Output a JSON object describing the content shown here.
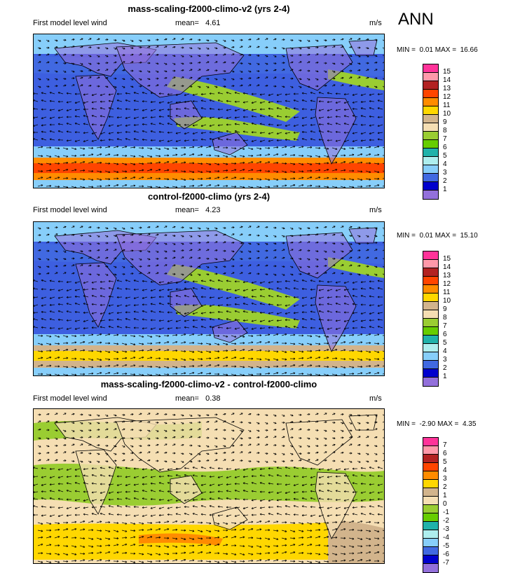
{
  "season": "ANN",
  "panels": [
    {
      "title": "mass-scaling-f2000-climo-v2 (yrs 2-4)",
      "variable": "First model level wind",
      "mean_label": "mean=",
      "mean": "4.61",
      "units": "m/s",
      "min_label": "MIN =",
      "min": "0.01",
      "max_label": "MAX =",
      "max": "16.66",
      "colorbar_labels": [
        "15",
        "14",
        "13",
        "12",
        "11",
        "10",
        "9",
        "8",
        "7",
        "6",
        "5",
        "4",
        "3",
        "2",
        "1"
      ],
      "colorbar_colors": [
        "#ff3399",
        "#ff99aa",
        "#b22222",
        "#ff4500",
        "#ff8c00",
        "#ffd700",
        "#d2b48c",
        "#f5deb3",
        "#9acd32",
        "#66cd00",
        "#20b2aa",
        "#aeeeee",
        "#87cefa",
        "#4169e1",
        "#0000cd",
        "#9370db"
      ]
    },
    {
      "title": "control-f2000-climo (yrs 2-4)",
      "variable": "First model level wind",
      "mean_label": "mean=",
      "mean": "4.23",
      "units": "m/s",
      "min_label": "MIN =",
      "min": "0.01",
      "max_label": "MAX =",
      "max": "15.10",
      "colorbar_labels": [
        "15",
        "14",
        "13",
        "12",
        "11",
        "10",
        "9",
        "8",
        "7",
        "6",
        "5",
        "4",
        "3",
        "2",
        "1"
      ],
      "colorbar_colors": [
        "#ff3399",
        "#ff99aa",
        "#b22222",
        "#ff4500",
        "#ff8c00",
        "#ffd700",
        "#d2b48c",
        "#f5deb3",
        "#9acd32",
        "#66cd00",
        "#20b2aa",
        "#aeeeee",
        "#87cefa",
        "#4169e1",
        "#0000cd",
        "#9370db"
      ]
    },
    {
      "title": "mass-scaling-f2000-climo-v2 - control-f2000-climo",
      "variable": "First model level wind",
      "mean_label": "mean=",
      "mean": "0.38",
      "units": "m/s",
      "min_label": "MIN =",
      "min": "-2.90",
      "max_label": "MAX =",
      "max": "4.35",
      "colorbar_labels": [
        "7",
        "6",
        "5",
        "4",
        "3",
        "2",
        "1",
        "0",
        "-1",
        "-2",
        "-3",
        "-4",
        "-5",
        "-6",
        "-7"
      ],
      "colorbar_colors": [
        "#ff3399",
        "#ff99aa",
        "#b22222",
        "#ff4500",
        "#ff8c00",
        "#ffd700",
        "#d2b48c",
        "#f5deb3",
        "#9acd32",
        "#66cd00",
        "#20b2aa",
        "#aeeeee",
        "#87cefa",
        "#4169e1",
        "#0000cd",
        "#9370db"
      ]
    }
  ]
}
